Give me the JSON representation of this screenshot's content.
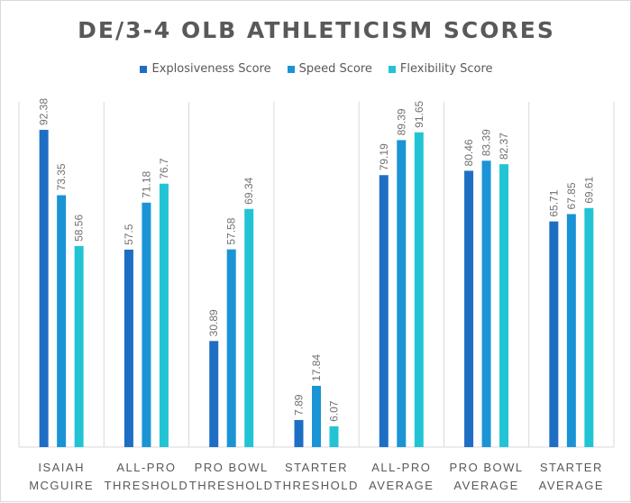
{
  "chart_data": {
    "type": "bar",
    "title": "DE/3-4 OLB ATHLETICISM SCORES",
    "xlabel": "",
    "ylabel": "",
    "ylim": [
      0,
      100
    ],
    "grid": false,
    "legend_position": "top",
    "categories": [
      [
        "ISAIAH",
        "MCGUIRE"
      ],
      [
        "ALL-PRO",
        "THRESHOLD"
      ],
      [
        "PRO BOWL",
        "THRESHOLD"
      ],
      [
        "STARTER",
        "THRESHOLD"
      ],
      [
        "ALL-PRO",
        "AVERAGE"
      ],
      [
        "PRO BOWL",
        "AVERAGE"
      ],
      [
        "STARTER",
        "AVERAGE"
      ]
    ],
    "series": [
      {
        "name": "Explosiveness Score",
        "color": "#1e6ec4",
        "values": [
          92.38,
          57.5,
          30.89,
          7.89,
          79.19,
          80.46,
          65.71
        ]
      },
      {
        "name": "Speed Score",
        "color": "#1b94d6",
        "values": [
          73.35,
          71.18,
          57.58,
          17.84,
          89.39,
          83.39,
          67.85
        ]
      },
      {
        "name": "Flexibility Score",
        "color": "#22c4d4",
        "values": [
          58.56,
          76.7,
          69.34,
          6.07,
          91.65,
          82.37,
          69.61
        ]
      }
    ]
  }
}
